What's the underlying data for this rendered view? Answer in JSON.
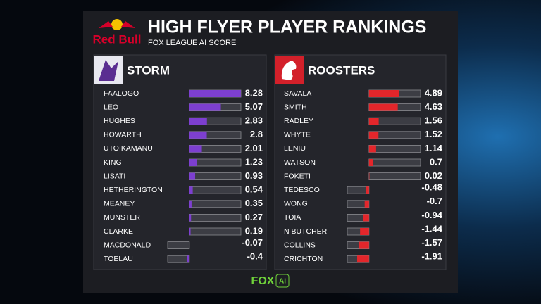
{
  "header": {
    "brand": "Red Bull",
    "title": "HIGH FLYER PLAYER RANKINGS",
    "subtitle": "FOX LEAGUE AI SCORE"
  },
  "footer": {
    "logo": "FOX",
    "badge": "AI"
  },
  "chart_data": [
    {
      "type": "bar",
      "title": "STORM",
      "color": "#7d3fd0",
      "xlim": [
        -3.5,
        8.3
      ],
      "categories": [
        "FAALOGO",
        "LEO",
        "HUGHES",
        "HOWARTH",
        "UTOIKAMANU",
        "KING",
        "LISATI",
        "HETHERINGTON",
        "MEANEY",
        "MUNSTER",
        "CLARKE",
        "MACDONALD",
        "TOELAU"
      ],
      "values": [
        8.28,
        5.07,
        2.83,
        2.8,
        2.01,
        1.23,
        0.93,
        0.54,
        0.35,
        0.27,
        0.19,
        -0.07,
        -0.4
      ]
    },
    {
      "type": "bar",
      "title": "ROOSTERS",
      "color": "#e3262b",
      "xlim": [
        -3.5,
        8.3
      ],
      "categories": [
        "SAVALA",
        "SMITH",
        "RADLEY",
        "WHYTE",
        "LENIU",
        "WATSON",
        "FOKETI",
        "TEDESCO",
        "WONG",
        "TOIA",
        "N BUTCHER",
        "COLLINS",
        "CRICHTON"
      ],
      "values": [
        4.89,
        4.63,
        1.56,
        1.52,
        1.14,
        0.7,
        0.02,
        -0.48,
        -0.7,
        -0.94,
        -1.44,
        -1.57,
        -1.91
      ]
    }
  ]
}
